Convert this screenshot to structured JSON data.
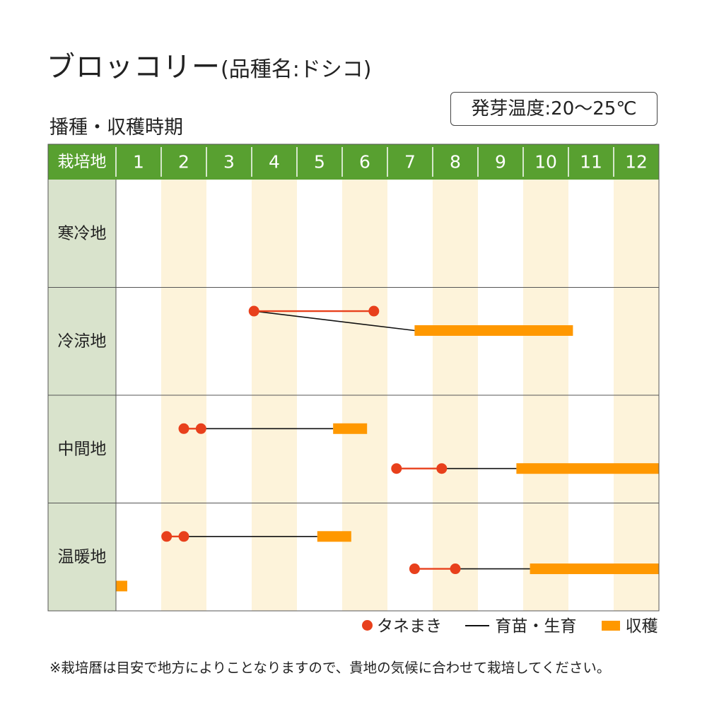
{
  "header": {
    "title_main": "ブロッコリー",
    "title_sub": "(品種名:ドシコ)",
    "subtitle": "播種・収穫時期",
    "germination_temp": "発芽温度:20〜25℃"
  },
  "chart_data": {
    "type": "gantt",
    "corner_label": "栽培地",
    "months": [
      "1",
      "2",
      "3",
      "4",
      "5",
      "6",
      "7",
      "8",
      "9",
      "10",
      "11",
      "12"
    ],
    "colors": {
      "header_bg": "#58a030",
      "region_bg": "#d9e3cc",
      "stripe": "#fdf3da",
      "sowing": "#e8401c",
      "growing": "#111111",
      "harvest": "#ff9800"
    },
    "regions": [
      {
        "name": "寒冷地",
        "tracks": []
      },
      {
        "name": "冷涼地",
        "tracks": [
          {
            "lane": 0.22,
            "sow": [
              4.05,
              6.7
            ],
            "grow_from": 4.05,
            "grow_to": 7.6,
            "grow_to_lane": 0.4,
            "harvest": [
              7.6,
              11.1
            ],
            "harvest_lane": 0.4
          }
        ]
      },
      {
        "name": "中間地",
        "tracks": [
          {
            "lane": 0.31,
            "sow": [
              2.5,
              2.88
            ],
            "grow_from": 2.88,
            "grow_to": 5.8,
            "harvest": [
              5.8,
              6.55
            ]
          },
          {
            "lane": 0.68,
            "sow": [
              7.2,
              8.2
            ],
            "grow_from": 8.2,
            "grow_to": 9.85,
            "harvest": [
              9.85,
              13.0
            ]
          }
        ]
      },
      {
        "name": "温暖地",
        "tracks": [
          {
            "lane": 0.31,
            "sow": [
              2.12,
              2.5
            ],
            "grow_from": 2.5,
            "grow_to": 5.45,
            "harvest": [
              5.45,
              6.2
            ]
          },
          {
            "lane": 0.61,
            "sow": [
              7.6,
              8.5
            ],
            "grow_from": 8.5,
            "grow_to": 10.15,
            "harvest": [
              10.15,
              13.1
            ]
          },
          {
            "lane": 0.77,
            "harvest": [
              1.0,
              1.25
            ]
          }
        ]
      }
    ]
  },
  "legend": {
    "sowing": "タネまき",
    "growing": "育苗・生育",
    "harvest": "収穫"
  },
  "footnote": "※栽培暦は目安で地方によりことなりますので、貴地の気候に合わせて栽培してください。"
}
